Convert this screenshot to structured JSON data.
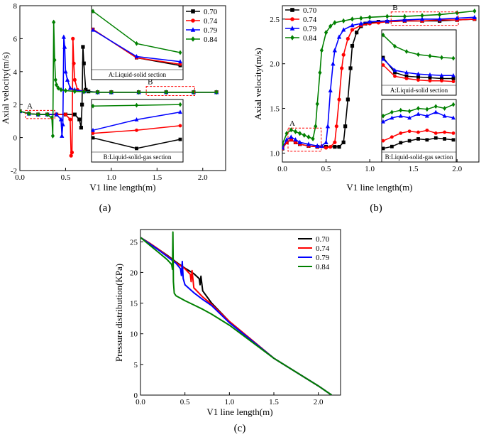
{
  "colors": {
    "s070": "#000000",
    "s074": "#ff0000",
    "s079": "#0000ff",
    "s084": "#008000",
    "box": "#ff0000"
  },
  "chart_data": [
    {
      "id": "a",
      "type": "line",
      "caption": "(a)",
      "xlabel": "V1 line length(m)",
      "ylabel": "Axial velocity(m/s)",
      "xlim": [
        0,
        2.25
      ],
      "ylim": [
        -2,
        8
      ],
      "xticks": [
        "0.0",
        "0.5",
        "1.0",
        "1.5",
        "2.0"
      ],
      "yticks": [
        "-2",
        "0",
        "2",
        "4",
        "6",
        "8"
      ],
      "legend": [
        "0.70",
        "0.74",
        "0.79",
        "0.84"
      ],
      "region_labels": [
        "A",
        "B"
      ],
      "insets": [
        {
          "title": "A:Liquid-solid section",
          "series": [
            {
              "name": "0.70",
              "values": [
                6.9,
                4.7,
                4.1
              ]
            },
            {
              "name": "0.74",
              "values": [
                6.9,
                4.7,
                4.2
              ]
            },
            {
              "name": "0.79",
              "values": [
                6.85,
                4.8,
                4.4
              ]
            },
            {
              "name": "0.84",
              "values": [
                8.3,
                5.8,
                5.1
              ]
            }
          ]
        },
        {
          "title": "B:Liquid-solid-gas section",
          "series": [
            {
              "name": "0.70",
              "values": [
                -0.1,
                -0.8,
                -0.2
              ]
            },
            {
              "name": "0.74",
              "values": [
                0.2,
                0.4,
                0.7
              ]
            },
            {
              "name": "0.79",
              "values": [
                0.4,
                1.1,
                1.6
              ]
            },
            {
              "name": "0.84",
              "values": [
                2.0,
                2.05,
                2.1
              ]
            }
          ]
        }
      ],
      "series": [
        {
          "name": "0.70",
          "x": [
            0.0,
            0.1,
            0.2,
            0.3,
            0.4,
            0.5,
            0.6,
            0.65,
            0.67,
            0.68,
            0.69,
            0.7,
            0.72,
            0.75,
            0.85,
            1.0,
            1.3,
            1.6,
            1.9,
            2.15
          ],
          "y": [
            1.6,
            1.45,
            1.4,
            1.4,
            1.4,
            1.4,
            1.4,
            1.1,
            0.6,
            2.0,
            5.5,
            4.5,
            2.9,
            2.8,
            2.75,
            2.75,
            2.75,
            2.75,
            2.75,
            2.75
          ]
        },
        {
          "name": "0.74",
          "x": [
            0.0,
            0.1,
            0.2,
            0.3,
            0.4,
            0.5,
            0.55,
            0.56,
            0.57,
            0.58,
            0.59,
            0.6,
            0.63,
            0.7,
            0.85,
            1.0,
            1.3,
            1.6,
            1.9,
            2.15
          ],
          "y": [
            1.6,
            1.45,
            1.4,
            1.4,
            1.4,
            1.4,
            1.1,
            -1.1,
            -0.9,
            6.0,
            4.5,
            3.5,
            2.9,
            2.8,
            2.75,
            2.75,
            2.75,
            2.75,
            2.75,
            2.75
          ]
        },
        {
          "name": "0.79",
          "x": [
            0.0,
            0.1,
            0.2,
            0.3,
            0.4,
            0.45,
            0.46,
            0.47,
            0.48,
            0.49,
            0.5,
            0.52,
            0.55,
            0.6,
            0.7,
            0.85,
            1.0,
            1.3,
            1.6,
            1.9,
            2.15
          ],
          "y": [
            1.6,
            1.45,
            1.4,
            1.4,
            1.4,
            1.1,
            0.1,
            0.8,
            6.1,
            5.5,
            4.0,
            3.5,
            3.0,
            2.9,
            2.8,
            2.75,
            2.75,
            2.75,
            2.75,
            2.75,
            2.75
          ]
        },
        {
          "name": "0.84",
          "x": [
            0.0,
            0.1,
            0.2,
            0.3,
            0.35,
            0.36,
            0.37,
            0.38,
            0.39,
            0.4,
            0.42,
            0.45,
            0.5,
            0.6,
            0.7,
            0.85,
            1.0,
            1.3,
            1.6,
            1.9,
            2.15
          ],
          "y": [
            1.6,
            1.45,
            1.4,
            1.4,
            1.2,
            0.1,
            7.0,
            4.7,
            3.5,
            3.2,
            3.0,
            2.9,
            2.85,
            2.8,
            2.78,
            2.75,
            2.75,
            2.75,
            2.75,
            2.75,
            2.75
          ]
        }
      ]
    },
    {
      "id": "b",
      "type": "line",
      "caption": "(b)",
      "xlabel": "V1 line length(m)",
      "ylabel": "Axial velocity(m/s)",
      "xlim": [
        0,
        2.25
      ],
      "ylim": [
        0.9,
        2.65
      ],
      "xticks": [
        "0.0",
        "0.5",
        "1.0",
        "1.5",
        "2.0"
      ],
      "yticks": [
        "1.0",
        "1.5",
        "2.0",
        "2.5"
      ],
      "legend": [
        "0.70",
        "0.74",
        "0.79",
        "0.84"
      ],
      "region_labels": [
        "A",
        "B"
      ],
      "insets": [
        {
          "title": "A:Liquid-solid section",
          "series": [
            {
              "name": "0.70",
              "values": [
                2.1,
                1.9,
                1.85,
                1.84,
                1.83,
                1.82,
                1.82
              ]
            },
            {
              "name": "0.74",
              "values": [
                2.0,
                1.85,
                1.82,
                1.8,
                1.79,
                1.79,
                1.78
              ]
            },
            {
              "name": "0.79",
              "values": [
                2.08,
                1.93,
                1.9,
                1.88,
                1.87,
                1.86,
                1.86
              ]
            },
            {
              "name": "0.84",
              "values": [
                2.4,
                2.25,
                2.18,
                2.14,
                2.12,
                2.1,
                2.09
              ]
            }
          ]
        },
        {
          "title": "B:Liquid-solid-gas section",
          "series": [
            {
              "name": "0.70",
              "values": [
                1.16,
                1.18,
                1.22,
                1.24,
                1.26,
                1.25,
                1.27,
                1.26,
                1.25
              ]
            },
            {
              "name": "0.74",
              "values": [
                1.24,
                1.28,
                1.32,
                1.34,
                1.33,
                1.35,
                1.32,
                1.33,
                1.32
              ]
            },
            {
              "name": "0.79",
              "values": [
                1.44,
                1.48,
                1.5,
                1.48,
                1.52,
                1.5,
                1.54,
                1.5,
                1.48
              ]
            },
            {
              "name": "0.84",
              "values": [
                1.5,
                1.54,
                1.56,
                1.55,
                1.58,
                1.57,
                1.6,
                1.58,
                1.62
              ]
            }
          ]
        }
      ],
      "series": [
        {
          "name": "0.70",
          "x": [
            0.0,
            0.05,
            0.1,
            0.15,
            0.2,
            0.3,
            0.4,
            0.5,
            0.6,
            0.65,
            0.7,
            0.72,
            0.75,
            0.78,
            0.8,
            0.85,
            0.9,
            0.95,
            1.0,
            1.1,
            1.2,
            1.4,
            1.6,
            1.8,
            2.0,
            2.2
          ],
          "y": [
            1.05,
            1.12,
            1.15,
            1.12,
            1.1,
            1.08,
            1.07,
            1.07,
            1.07,
            1.07,
            1.12,
            1.3,
            1.6,
            1.95,
            2.2,
            2.35,
            2.42,
            2.45,
            2.46,
            2.47,
            2.47,
            2.48,
            2.48,
            2.48,
            2.49,
            2.5
          ]
        },
        {
          "name": "0.74",
          "x": [
            0.0,
            0.05,
            0.1,
            0.15,
            0.2,
            0.3,
            0.4,
            0.5,
            0.55,
            0.6,
            0.62,
            0.65,
            0.68,
            0.7,
            0.75,
            0.8,
            0.9,
            1.0,
            1.1,
            1.2,
            1.4,
            1.6,
            1.8,
            2.0,
            2.2
          ],
          "y": [
            1.05,
            1.12,
            1.15,
            1.12,
            1.1,
            1.08,
            1.07,
            1.06,
            1.07,
            1.12,
            1.3,
            1.6,
            1.95,
            2.1,
            2.28,
            2.38,
            2.43,
            2.45,
            2.46,
            2.47,
            2.48,
            2.48,
            2.49,
            2.49,
            2.5
          ]
        },
        {
          "name": "0.79",
          "x": [
            0.0,
            0.05,
            0.1,
            0.15,
            0.2,
            0.3,
            0.4,
            0.45,
            0.5,
            0.52,
            0.55,
            0.58,
            0.6,
            0.65,
            0.7,
            0.8,
            0.9,
            1.0,
            1.2,
            1.4,
            1.6,
            1.8,
            2.0,
            2.2
          ],
          "y": [
            1.06,
            1.15,
            1.18,
            1.15,
            1.12,
            1.1,
            1.08,
            1.08,
            1.12,
            1.3,
            1.7,
            2.0,
            2.15,
            2.3,
            2.38,
            2.43,
            2.45,
            2.47,
            2.48,
            2.49,
            2.5,
            2.5,
            2.51,
            2.52
          ]
        },
        {
          "name": "0.84",
          "x": [
            0.0,
            0.05,
            0.1,
            0.15,
            0.2,
            0.25,
            0.3,
            0.35,
            0.38,
            0.4,
            0.43,
            0.45,
            0.5,
            0.55,
            0.6,
            0.7,
            0.8,
            0.9,
            1.0,
            1.2,
            1.4,
            1.6,
            1.8,
            2.0,
            2.2
          ],
          "y": [
            1.1,
            1.22,
            1.26,
            1.24,
            1.22,
            1.2,
            1.18,
            1.16,
            1.3,
            1.55,
            1.9,
            2.15,
            2.35,
            2.42,
            2.46,
            2.48,
            2.5,
            2.51,
            2.52,
            2.53,
            2.53,
            2.54,
            2.55,
            2.57,
            2.59
          ]
        }
      ]
    },
    {
      "id": "c",
      "type": "line",
      "caption": "(c)",
      "xlabel": "V1 line length(m)",
      "ylabel": "Pressure distribution(KPa)",
      "xlim": [
        0,
        2.25
      ],
      "ylim": [
        0,
        27
      ],
      "xticks": [
        "0.0",
        "0.5",
        "1.0",
        "1.5",
        "2.0"
      ],
      "yticks": [
        "0",
        "5",
        "10",
        "15",
        "20",
        "25"
      ],
      "legend": [
        "0.70",
        "0.74",
        "0.79",
        "0.84"
      ],
      "series": [
        {
          "name": "0.70",
          "x": [
            0.0,
            0.1,
            0.2,
            0.3,
            0.4,
            0.5,
            0.6,
            0.66,
            0.67,
            0.68,
            0.7,
            0.8,
            1.0,
            1.5,
            2.0,
            2.15
          ],
          "y": [
            25.7,
            24.8,
            23.8,
            22.8,
            21.7,
            20.7,
            19.8,
            19.0,
            18.0,
            19.4,
            17.0,
            15.0,
            12.0,
            6.0,
            1.5,
            0.0
          ]
        },
        {
          "name": "0.74",
          "x": [
            0.0,
            0.1,
            0.2,
            0.3,
            0.4,
            0.5,
            0.56,
            0.57,
            0.58,
            0.6,
            0.7,
            0.8,
            1.0,
            1.5,
            2.0,
            2.15
          ],
          "y": [
            25.7,
            24.8,
            23.8,
            22.7,
            21.6,
            20.6,
            19.7,
            18.5,
            20.3,
            17.5,
            16.0,
            14.8,
            12.0,
            6.0,
            1.5,
            0.0
          ]
        },
        {
          "name": "0.79",
          "x": [
            0.0,
            0.1,
            0.2,
            0.3,
            0.4,
            0.45,
            0.46,
            0.47,
            0.48,
            0.5,
            0.6,
            0.7,
            0.8,
            1.0,
            1.5,
            2.0,
            2.15
          ],
          "y": [
            25.7,
            24.7,
            23.7,
            22.6,
            21.5,
            20.6,
            19.5,
            21.8,
            19.0,
            18.0,
            16.7,
            15.6,
            14.6,
            11.8,
            6.0,
            1.5,
            0.0
          ]
        },
        {
          "name": "0.84",
          "x": [
            0.0,
            0.1,
            0.2,
            0.3,
            0.35,
            0.36,
            0.365,
            0.37,
            0.38,
            0.4,
            0.5,
            0.6,
            0.7,
            0.8,
            1.0,
            1.5,
            2.0,
            2.15
          ],
          "y": [
            25.7,
            24.5,
            23.3,
            22.1,
            21.3,
            20.5,
            26.6,
            18.5,
            16.6,
            16.2,
            15.4,
            14.7,
            14.0,
            13.2,
            11.4,
            6.0,
            1.5,
            0.0
          ]
        }
      ]
    }
  ]
}
